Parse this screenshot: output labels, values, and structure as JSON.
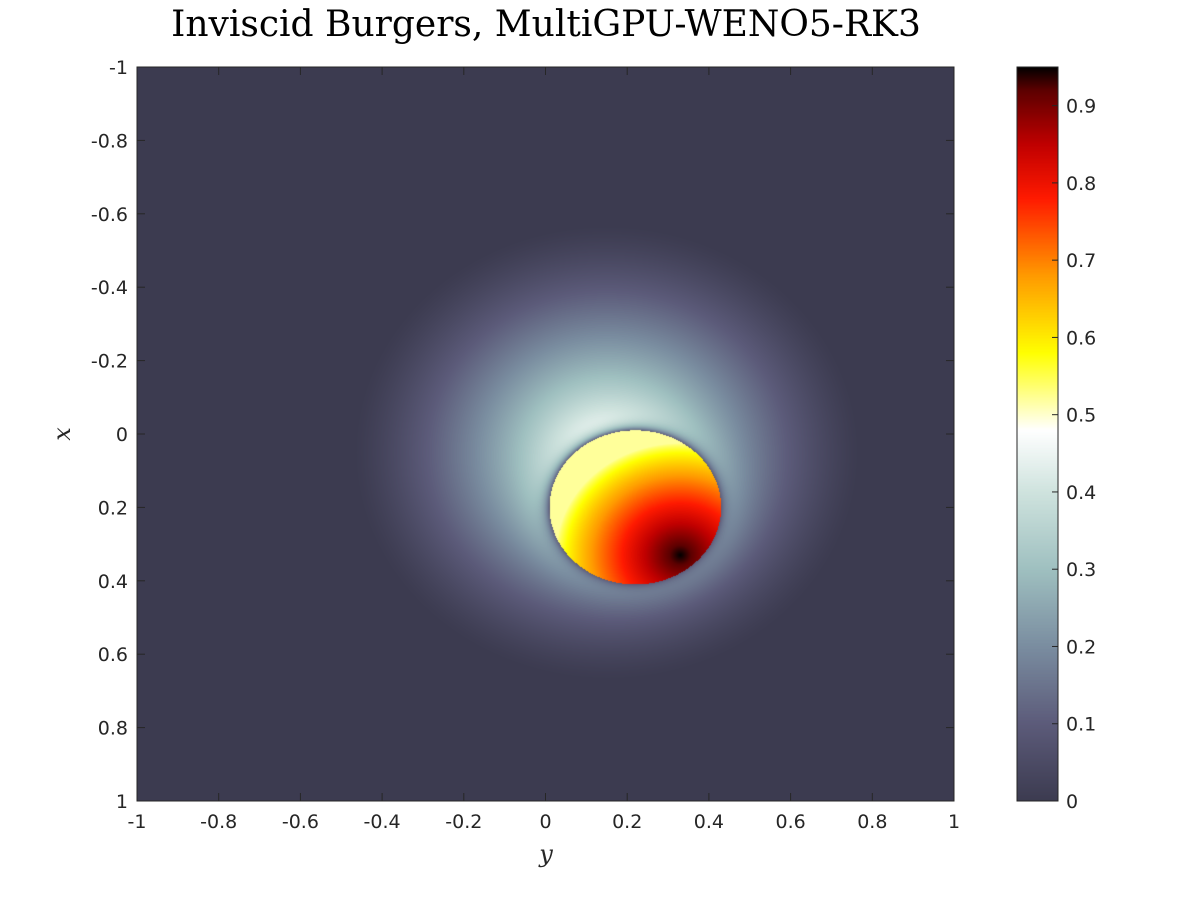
{
  "chart_data": {
    "type": "heatmap",
    "title": "Inviscid Burgers, MultiGPU-WENO5-RK3",
    "xlabel": "y",
    "ylabel": "x",
    "x_range": [
      -1,
      1
    ],
    "y_range": [
      -1,
      1
    ],
    "y_direction": "reversed",
    "x_ticks": [
      -1,
      -0.8,
      -0.6,
      -0.4,
      -0.2,
      0,
      0.2,
      0.4,
      0.6,
      0.8,
      1
    ],
    "x_tick_labels": [
      "-1",
      "-0.8",
      "-0.6",
      "-0.4",
      "-0.2",
      "0",
      "0.2",
      "0.4",
      "0.6",
      "0.8",
      "1"
    ],
    "y_ticks": [
      -1,
      -0.8,
      -0.6,
      -0.4,
      -0.2,
      0,
      0.2,
      0.4,
      0.6,
      0.8,
      1
    ],
    "y_tick_labels": [
      "-1",
      "-0.8",
      "-0.6",
      "-0.4",
      "-0.2",
      "0",
      "0.2",
      "0.4",
      "0.6",
      "0.8",
      "1"
    ],
    "colorbar": {
      "range": [
        0,
        0.95
      ],
      "ticks": [
        0,
        0.1,
        0.2,
        0.3,
        0.4,
        0.5,
        0.6,
        0.7,
        0.8,
        0.9
      ],
      "tick_labels": [
        "0",
        "0.1",
        "0.2",
        "0.3",
        "0.4",
        "0.5",
        "0.6",
        "0.7",
        "0.8",
        "0.9"
      ],
      "colormap_stops": [
        {
          "value": 0.0,
          "color": "#3c3b50"
        },
        {
          "value": 0.1,
          "color": "#5c5b7a"
        },
        {
          "value": 0.2,
          "color": "#7a8da0"
        },
        {
          "value": 0.3,
          "color": "#9fc0c0"
        },
        {
          "value": 0.4,
          "color": "#cfe3de"
        },
        {
          "value": 0.48,
          "color": "#ffffff"
        },
        {
          "value": 0.52,
          "color": "#ffff9a"
        },
        {
          "value": 0.58,
          "color": "#ffff00"
        },
        {
          "value": 0.68,
          "color": "#ff9a00"
        },
        {
          "value": 0.78,
          "color": "#ff1a00"
        },
        {
          "value": 0.85,
          "color": "#c00000"
        },
        {
          "value": 0.92,
          "color": "#5c0000"
        },
        {
          "value": 0.95,
          "color": "#000000"
        }
      ]
    },
    "field": {
      "background": 0,
      "peak_value": 0.95,
      "peak_location": {
        "y": 0.33,
        "x": 0.33
      },
      "shock_front_center": {
        "y": 0.22,
        "x": 0.2
      },
      "shock_front_radius": 0.21,
      "plateau_min": 0.52,
      "tail_center": {
        "y": 0.15,
        "x": 0.05
      },
      "tail_radius": 0.62
    }
  }
}
